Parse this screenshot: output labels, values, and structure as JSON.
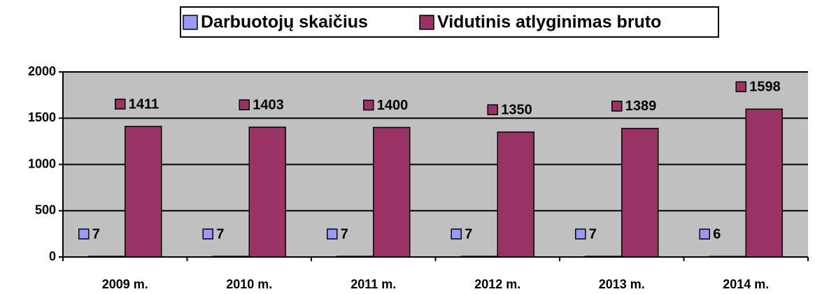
{
  "chart_data": {
    "type": "bar",
    "categories": [
      "2009 m.",
      "2010 m.",
      "2011 m.",
      "2012 m.",
      "2013 m.",
      "2014 m."
    ],
    "series": [
      {
        "name": "Darbuotojų skaičius",
        "color": "#9999ff",
        "values": [
          7,
          7,
          7,
          7,
          7,
          6
        ]
      },
      {
        "name": "Vidutinis atlyginimas bruto",
        "color": "#993366",
        "values": [
          1411,
          1403,
          1400,
          1350,
          1389,
          1598
        ]
      }
    ],
    "ylim": [
      0,
      2000
    ],
    "yticks": [
      0,
      500,
      1000,
      1500,
      2000
    ],
    "grid": true,
    "legend": "top"
  }
}
